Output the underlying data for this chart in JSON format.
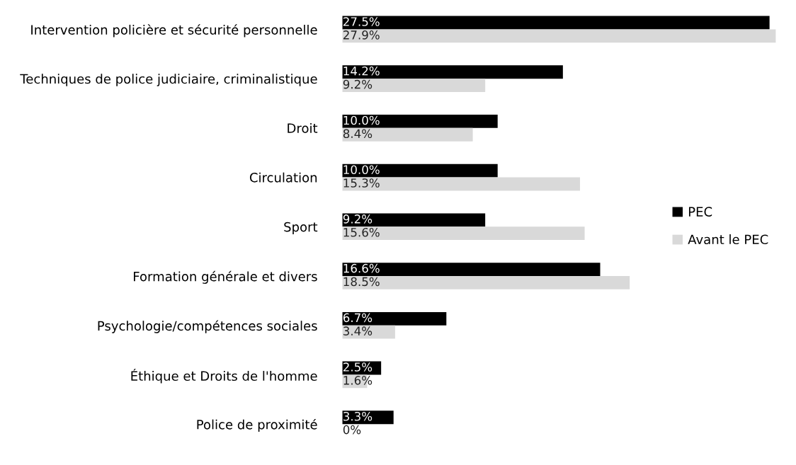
{
  "chart_data": {
    "type": "bar",
    "orientation": "horizontal",
    "categories": [
      "Intervention policière et sécurité personnelle",
      "Techniques de police judiciaire, criminalistique",
      "Droit",
      "Circulation",
      "Sport",
      "Formation générale et divers",
      "Psychologie/compétences sociales",
      "Éthique et Droits de l'homme",
      "Police de proximité"
    ],
    "series": [
      {
        "name": "PEC",
        "color": "#000000",
        "values": [
          27.5,
          14.2,
          10.0,
          10.0,
          9.2,
          16.6,
          6.7,
          2.5,
          3.3
        ],
        "value_labels": [
          "27.5%",
          "14.2%",
          "10.0%",
          "10.0%",
          "9.2%",
          "16.6%",
          "6.7%",
          "2.5%",
          "3.3%"
        ]
      },
      {
        "name": "Avant le PEC",
        "color": "#d9d9d9",
        "values": [
          27.9,
          9.2,
          8.4,
          15.3,
          15.6,
          18.5,
          3.4,
          1.6,
          0
        ],
        "value_labels": [
          "27.9%",
          "9.2%",
          "8.4%",
          "15.3%",
          "15.6%",
          "18.5%",
          "3.4%",
          "1.6%",
          "0%"
        ]
      }
    ],
    "legend": "center right",
    "grid": false
  }
}
